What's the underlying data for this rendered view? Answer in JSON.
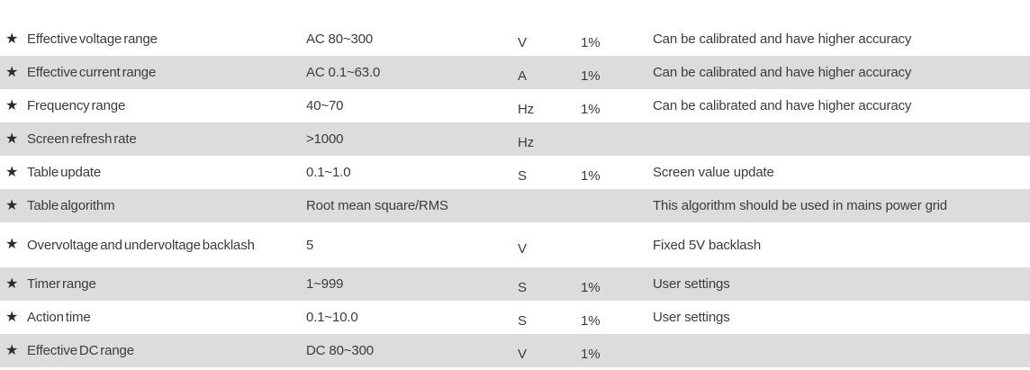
{
  "colors": {
    "row_alt_bg": "#dcdcdc",
    "text": "#3c3c3c",
    "star": "#2b2b2b",
    "page_bg": "#ffffff"
  },
  "table": {
    "star_icon": "★",
    "rows": [
      {
        "label": "Effective voltage range",
        "value": "AC 80~300",
        "unit": "V",
        "tolerance": "1%",
        "description": "Can be calibrated and have higher accuracy"
      },
      {
        "label": "Effective current range",
        "value": "AC 0.1~63.0",
        "unit": "A",
        "tolerance": "1%",
        "description": "Can be calibrated and have higher accuracy"
      },
      {
        "label": "Frequency range",
        "value": "40~70",
        "unit": "Hz",
        "tolerance": "1%",
        "description": "Can be calibrated and have higher accuracy"
      },
      {
        "label": "Screen refresh rate",
        "value": ">1000",
        "unit": "Hz",
        "tolerance": "",
        "description": ""
      },
      {
        "label": "Table update",
        "value": "0.1~1.0",
        "unit": "S",
        "tolerance": "1%",
        "description": "Screen value update"
      },
      {
        "label": "Table algorithm",
        "value": "Root mean square/RMS",
        "unit": "",
        "tolerance": "",
        "description": "This algorithm should be used in mains power grid"
      },
      {
        "label": "Overvoltage and undervoltage backlash",
        "value": "5",
        "unit": "V",
        "tolerance": "",
        "description": "Fixed 5V backlash"
      },
      {
        "label": "Timer range",
        "value": "1~999",
        "unit": "S",
        "tolerance": "1%",
        "description": "User settings"
      },
      {
        "label": "Action time",
        "value": "0.1~10.0",
        "unit": "S",
        "tolerance": "1%",
        "description": "User settings"
      },
      {
        "label": "Effective DC range",
        "value": "DC 80~300",
        "unit": "V",
        "tolerance": "1%",
        "description": ""
      }
    ]
  }
}
